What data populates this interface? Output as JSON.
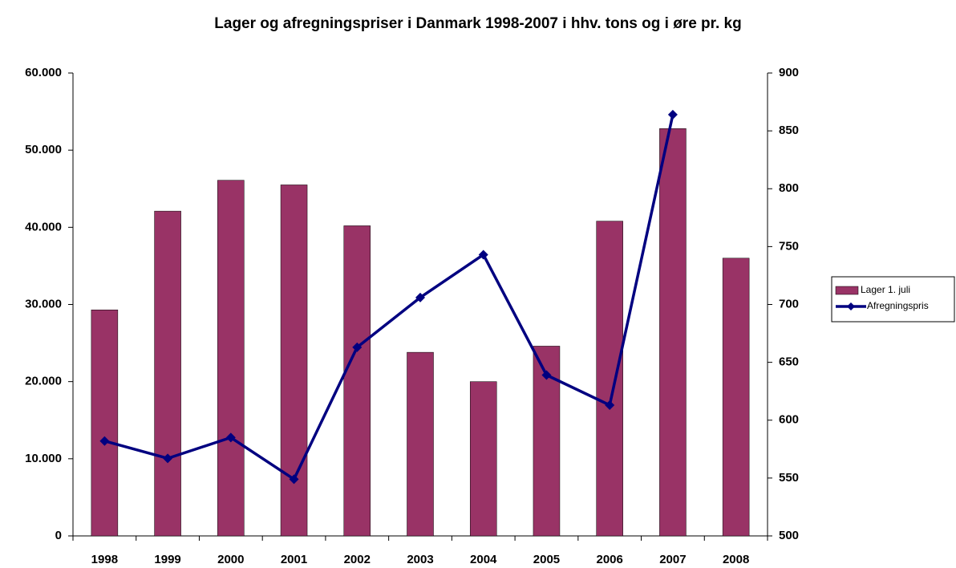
{
  "chart_data": {
    "type": "bar-line",
    "title": "Lager og afregningspriser i Danmark 1998-2007 i hhv. tons og i øre pr. kg",
    "categories": [
      "1998",
      "1999",
      "2000",
      "2001",
      "2002",
      "2003",
      "2004",
      "2005",
      "2006",
      "2007",
      "2008"
    ],
    "series": [
      {
        "name": "Lager 1. juli",
        "type": "bar",
        "color": "#993366",
        "values": [
          29300,
          42100,
          46100,
          45500,
          40200,
          23800,
          20000,
          24600,
          40800,
          52800,
          36000
        ]
      },
      {
        "name": "Afregningspris",
        "type": "line",
        "axis": "y2",
        "color": "#000080",
        "values": [
          582,
          567,
          585,
          549,
          663,
          706,
          743,
          639,
          613,
          864,
          null
        ]
      }
    ],
    "ylim": [
      0,
      60000
    ],
    "yticks": [
      0,
      {
        "value": 10000,
        "label": "10.000"
      },
      {
        "value": 20000,
        "label": "20.000"
      },
      {
        "value": 30000,
        "label": "30.000"
      },
      {
        "value": 40000,
        "label": "40.000"
      },
      {
        "value": 50000,
        "label": "50.000"
      },
      {
        "value": 60000,
        "label": "60.000"
      }
    ],
    "y2lim": [
      500,
      900
    ],
    "y2ticks": [
      500,
      550,
      600,
      650,
      700,
      750,
      800,
      850,
      900
    ],
    "legend": "right"
  }
}
